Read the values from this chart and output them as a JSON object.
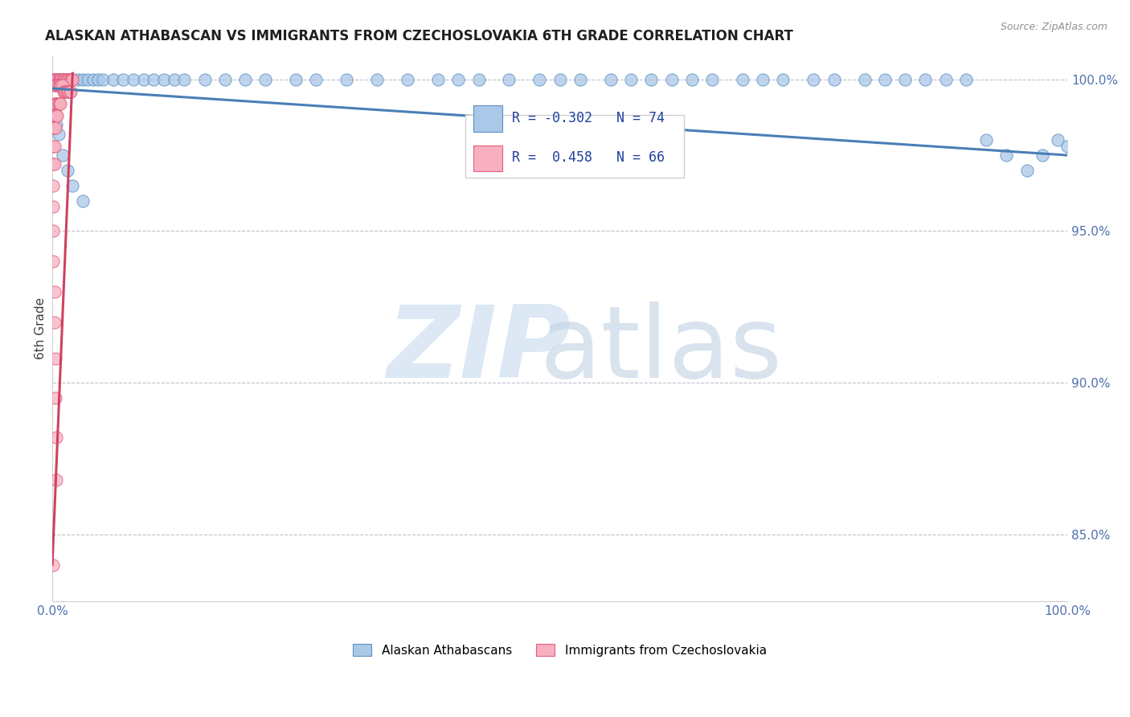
{
  "title": "ALASKAN ATHABASCAN VS IMMIGRANTS FROM CZECHOSLOVAKIA 6TH GRADE CORRELATION CHART",
  "source": "Source: ZipAtlas.com",
  "ylabel": "6th Grade",
  "xlim": [
    0.0,
    1.0
  ],
  "ylim": [
    0.828,
    1.008
  ],
  "yticks": [
    0.85,
    0.9,
    0.95,
    1.0
  ],
  "ytick_labels": [
    "85.0%",
    "90.0%",
    "95.0%",
    "100.0%"
  ],
  "xtick_labels": [
    "0.0%",
    "",
    "",
    "",
    "100.0%"
  ],
  "legend_blue_R": "-0.302",
  "legend_blue_N": "74",
  "legend_pink_R": "0.458",
  "legend_pink_N": "66",
  "blue_color": "#aac8e8",
  "pink_color": "#f8b0c0",
  "blue_edge_color": "#6090c0",
  "pink_edge_color": "#e06080",
  "blue_line_color": "#4a7fb5",
  "pink_line_color": "#d04060",
  "blue_scatter_x": [
    0.001,
    0.002,
    0.003,
    0.004,
    0.005,
    0.006,
    0.007,
    0.008,
    0.009,
    0.01,
    0.012,
    0.015,
    0.018,
    0.02,
    0.025,
    0.03,
    0.035,
    0.04,
    0.045,
    0.05,
    0.06,
    0.07,
    0.08,
    0.09,
    0.1,
    0.11,
    0.12,
    0.13,
    0.15,
    0.17,
    0.19,
    0.21,
    0.24,
    0.26,
    0.29,
    0.32,
    0.35,
    0.38,
    0.4,
    0.42,
    0.45,
    0.48,
    0.5,
    0.52,
    0.55,
    0.57,
    0.59,
    0.61,
    0.63,
    0.65,
    0.68,
    0.7,
    0.72,
    0.75,
    0.77,
    0.8,
    0.82,
    0.84,
    0.86,
    0.88,
    0.9,
    0.92,
    0.94,
    0.96,
    0.975,
    0.99,
    1.0,
    0.002,
    0.004,
    0.006,
    0.01,
    0.015,
    0.02,
    0.03
  ],
  "blue_scatter_y": [
    1.0,
    1.0,
    1.0,
    1.0,
    1.0,
    1.0,
    1.0,
    1.0,
    1.0,
    1.0,
    1.0,
    1.0,
    1.0,
    1.0,
    1.0,
    1.0,
    1.0,
    1.0,
    1.0,
    1.0,
    1.0,
    1.0,
    1.0,
    1.0,
    1.0,
    1.0,
    1.0,
    1.0,
    1.0,
    1.0,
    1.0,
    1.0,
    1.0,
    1.0,
    1.0,
    1.0,
    1.0,
    1.0,
    1.0,
    1.0,
    1.0,
    1.0,
    1.0,
    1.0,
    1.0,
    1.0,
    1.0,
    1.0,
    1.0,
    1.0,
    1.0,
    1.0,
    1.0,
    1.0,
    1.0,
    1.0,
    1.0,
    1.0,
    1.0,
    1.0,
    1.0,
    0.98,
    0.975,
    0.97,
    0.975,
    0.98,
    0.978,
    0.99,
    0.985,
    0.982,
    0.975,
    0.97,
    0.965,
    0.96
  ],
  "pink_scatter_x": [
    0.001,
    0.002,
    0.003,
    0.004,
    0.005,
    0.006,
    0.007,
    0.008,
    0.009,
    0.01,
    0.011,
    0.012,
    0.013,
    0.014,
    0.015,
    0.016,
    0.017,
    0.018,
    0.019,
    0.02,
    0.002,
    0.003,
    0.004,
    0.005,
    0.006,
    0.007,
    0.008,
    0.009,
    0.01,
    0.011,
    0.012,
    0.013,
    0.014,
    0.015,
    0.016,
    0.017,
    0.018,
    0.002,
    0.003,
    0.004,
    0.005,
    0.006,
    0.007,
    0.008,
    0.002,
    0.003,
    0.004,
    0.005,
    0.001,
    0.002,
    0.003,
    0.001,
    0.002,
    0.001,
    0.002,
    0.001,
    0.001,
    0.001,
    0.001,
    0.002,
    0.002,
    0.003,
    0.003,
    0.004,
    0.004,
    0.001
  ],
  "pink_scatter_y": [
    1.0,
    1.0,
    1.0,
    1.0,
    1.0,
    1.0,
    1.0,
    1.0,
    1.0,
    1.0,
    1.0,
    1.0,
    1.0,
    1.0,
    1.0,
    1.0,
    1.0,
    1.0,
    1.0,
    1.0,
    0.998,
    0.998,
    0.998,
    0.998,
    0.998,
    0.998,
    0.998,
    0.998,
    0.998,
    0.996,
    0.996,
    0.996,
    0.996,
    0.996,
    0.996,
    0.996,
    0.996,
    0.992,
    0.992,
    0.992,
    0.992,
    0.992,
    0.992,
    0.992,
    0.988,
    0.988,
    0.988,
    0.988,
    0.984,
    0.984,
    0.984,
    0.978,
    0.978,
    0.972,
    0.972,
    0.965,
    0.958,
    0.95,
    0.94,
    0.93,
    0.92,
    0.908,
    0.895,
    0.882,
    0.868,
    0.84
  ],
  "blue_line_start_x": 0.0,
  "blue_line_start_y": 0.997,
  "blue_line_end_x": 1.0,
  "blue_line_end_y": 0.975,
  "pink_line_start_x": 0.0,
  "pink_line_start_y": 0.84,
  "pink_line_end_x": 0.02,
  "pink_line_end_y": 1.002
}
